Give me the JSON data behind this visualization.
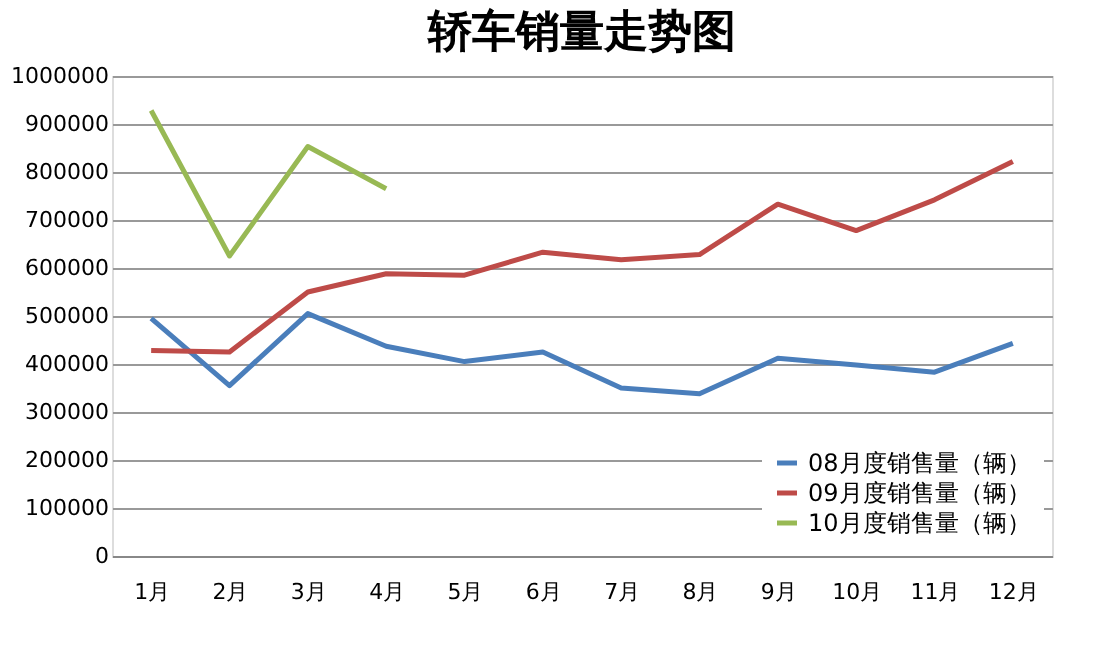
{
  "chart_data": {
    "type": "line",
    "title": "轿车销量走势图",
    "categories": [
      "1月",
      "2月",
      "3月",
      "4月",
      "5月",
      "6月",
      "7月",
      "8月",
      "9月",
      "10月",
      "11月",
      "12月"
    ],
    "series": [
      {
        "name": "08月度销售量（辆）",
        "color": "#4a7ebb",
        "values": [
          495000,
          355000,
          505000,
          437000,
          405000,
          425000,
          350000,
          338000,
          412000,
          398000,
          383000,
          443000
        ]
      },
      {
        "name": "09月度销售量（辆）",
        "color": "#be4b48",
        "values": [
          428000,
          425000,
          550000,
          588000,
          585000,
          633000,
          617000,
          628000,
          733000,
          678000,
          742000,
          822000
        ]
      },
      {
        "name": "10月度销售量（辆）",
        "color": "#98b954",
        "values": [
          928000,
          625000,
          853000,
          765000,
          null,
          null,
          null,
          null,
          null,
          null,
          null,
          null
        ]
      }
    ],
    "ylim": [
      0,
      1000000
    ],
    "yticks": [
      0,
      100000,
      200000,
      300000,
      400000,
      500000,
      600000,
      700000,
      800000,
      900000,
      1000000
    ],
    "grid": "y",
    "legend": "bottom right",
    "marker": "none",
    "line_style": "solid"
  }
}
